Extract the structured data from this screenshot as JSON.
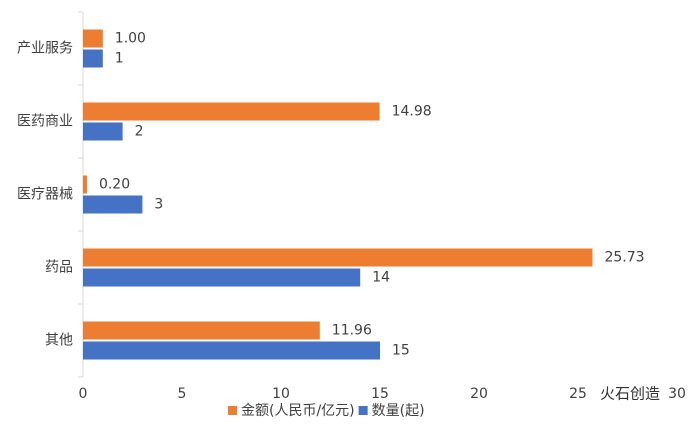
{
  "chart_data": {
    "type": "hbar",
    "categories": [
      "产业服务",
      "医药商业",
      "医疗器械",
      "药品",
      "其他"
    ],
    "series": [
      {
        "name": "金额(人民币/亿元)",
        "color": "#ed7d31",
        "values": [
          1.0,
          14.98,
          0.2,
          25.73,
          11.96
        ],
        "value_labels": [
          "1.00",
          "14.98",
          "0.20",
          "25.73",
          "11.96"
        ]
      },
      {
        "name": "数量(起)",
        "color": "#4472c4",
        "values": [
          1,
          2,
          3,
          14,
          15
        ]
      }
    ],
    "xlim": [
      0,
      30
    ],
    "xticks": [
      0,
      5,
      10,
      15,
      20,
      25,
      30
    ],
    "legend": "bottom",
    "watermark": "火石创造"
  }
}
